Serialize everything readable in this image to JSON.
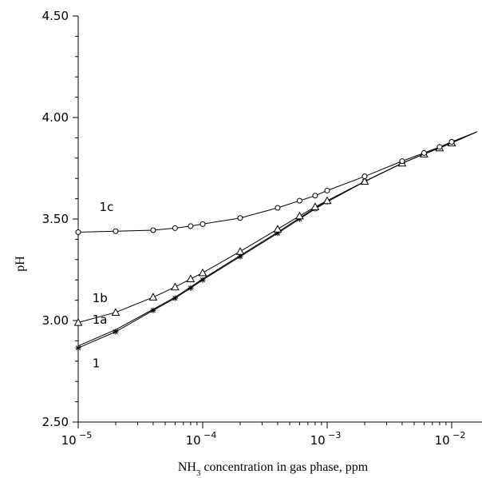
{
  "chart_data": {
    "type": "line",
    "title": "",
    "xlabel": {
      "main": "NH",
      "sub": "3",
      "rest": " concentration in gas phase, ppm"
    },
    "ylabel": "pH",
    "x_scale": "log",
    "xlim": [
      1e-05,
      0.016
    ],
    "ylim": [
      2.5,
      4.5
    ],
    "grid": false,
    "x_ticks": [
      {
        "value": 1e-05,
        "base": "10",
        "exp": "−5"
      },
      {
        "value": 0.0001,
        "base": "10",
        "exp": "−4"
      },
      {
        "value": 0.001,
        "base": "10",
        "exp": "−3"
      },
      {
        "value": 0.01,
        "base": "10",
        "exp": "−2"
      }
    ],
    "y_ticks": [
      {
        "value": 2.5,
        "label": "2.50"
      },
      {
        "value": 3.0,
        "label": "3.00"
      },
      {
        "value": 3.5,
        "label": "3.50"
      },
      {
        "value": 4.0,
        "label": "4.00"
      },
      {
        "value": 4.5,
        "label": "4.50"
      }
    ],
    "series": [
      {
        "name": "1",
        "marker": "star",
        "label_pos": {
          "x": 1.3e-05,
          "y": 2.77
        },
        "x": [
          1e-05,
          2e-05,
          4e-05,
          6e-05,
          8e-05,
          0.0001,
          0.0002,
          0.0004,
          0.0006,
          0.0008,
          0.001,
          0.002,
          0.004,
          0.006,
          0.008,
          0.01,
          0.016
        ],
        "y": [
          2.865,
          2.945,
          3.05,
          3.11,
          3.16,
          3.2,
          3.315,
          3.43,
          3.5,
          3.55,
          3.585,
          3.685,
          3.775,
          3.82,
          3.85,
          3.875,
          3.93
        ]
      },
      {
        "name": "1a",
        "marker": "plus",
        "label_pos": {
          "x": 1.3e-05,
          "y": 2.985
        },
        "x": [
          1e-05,
          2e-05,
          4e-05,
          6e-05,
          8e-05,
          0.0001,
          0.0002,
          0.0004,
          0.0006,
          0.0008,
          0.001,
          0.002,
          0.004,
          0.006,
          0.008,
          0.01,
          0.016
        ],
        "y": [
          2.875,
          2.955,
          3.055,
          3.115,
          3.165,
          3.205,
          3.32,
          3.435,
          3.505,
          3.555,
          3.585,
          3.685,
          3.775,
          3.82,
          3.85,
          3.875,
          3.93
        ]
      },
      {
        "name": "1b",
        "marker": "triangle",
        "label_pos": {
          "x": 1.3e-05,
          "y": 3.09
        },
        "x": [
          1e-05,
          2e-05,
          4e-05,
          6e-05,
          8e-05,
          0.0001,
          0.0002,
          0.0004,
          0.0006,
          0.0008,
          0.001,
          0.002,
          0.004,
          0.006,
          0.008,
          0.01,
          0.016
        ],
        "y": [
          2.99,
          3.04,
          3.115,
          3.165,
          3.205,
          3.235,
          3.34,
          3.45,
          3.515,
          3.56,
          3.59,
          3.685,
          3.775,
          3.82,
          3.85,
          3.875,
          3.93
        ]
      },
      {
        "name": "1c",
        "marker": "circle",
        "label_pos": {
          "x": 1.48e-05,
          "y": 3.54
        },
        "x": [
          1e-05,
          2e-05,
          4e-05,
          6e-05,
          8e-05,
          0.0001,
          0.0002,
          0.0004,
          0.0006,
          0.0008,
          0.001,
          0.002,
          0.004,
          0.006,
          0.008,
          0.01,
          0.016
        ],
        "y": [
          3.435,
          3.44,
          3.445,
          3.455,
          3.465,
          3.475,
          3.505,
          3.555,
          3.59,
          3.615,
          3.64,
          3.71,
          3.785,
          3.825,
          3.855,
          3.88,
          3.93
        ]
      }
    ]
  }
}
